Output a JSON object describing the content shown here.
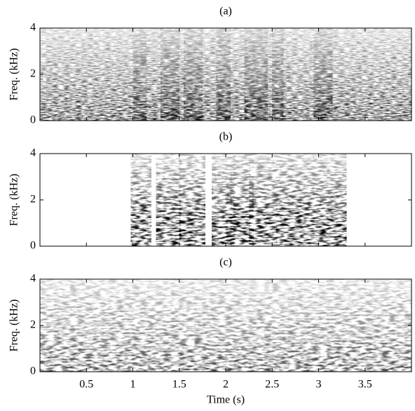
{
  "chart_data": [
    {
      "type": "spectrogram",
      "title": "(a)",
      "ylabel": "Freq. (kHz)",
      "ylim": [
        0,
        4
      ],
      "yticks": [
        0,
        2,
        4
      ],
      "xlim": [
        0,
        4
      ]
    },
    {
      "type": "spectrogram",
      "title": "(b)",
      "ylabel": "Freq. (kHz)",
      "ylim": [
        0,
        4
      ],
      "yticks": [
        0,
        2,
        4
      ],
      "xlim": [
        0,
        4
      ]
    },
    {
      "type": "spectrogram",
      "title": "(c)",
      "ylabel": "Freq. (kHz)",
      "ylim": [
        0,
        4
      ],
      "yticks": [
        0,
        2,
        4
      ],
      "xlim": [
        0,
        4
      ],
      "xlabel": "Time (s)",
      "xticks": [
        0.5,
        1,
        1.5,
        2,
        2.5,
        3,
        3.5
      ]
    }
  ]
}
